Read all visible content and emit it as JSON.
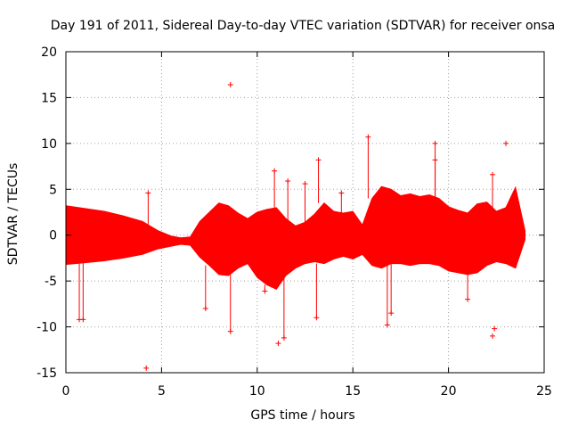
{
  "chart_data": {
    "type": "scatter",
    "title": "Day 191 of 2011, Sidereal Day-to-day VTEC variation (SDTVAR) for receiver onsa",
    "xlabel": "GPS time / hours",
    "ylabel": "SDTVAR / TECUs",
    "xlim": [
      0,
      25
    ],
    "ylim": [
      -15,
      20
    ],
    "xticks": [
      0,
      5,
      10,
      15,
      20,
      25
    ],
    "yticks": [
      -15,
      -10,
      -5,
      0,
      5,
      10,
      15,
      20
    ],
    "grid": true,
    "marker": "+",
    "color": "#ff0000",
    "series": [
      {
        "name": "SDTVAR",
        "band_x": [
          0,
          1,
          2,
          3,
          4,
          4.8,
          5.5,
          6,
          6.5,
          7,
          7.5,
          8,
          8.5,
          9,
          9.5,
          10,
          10.5,
          11,
          11.5,
          12,
          12.5,
          13,
          13.5,
          14,
          14.5,
          15,
          15.5,
          16,
          16.5,
          17,
          17.5,
          18,
          18.5,
          19,
          19.5,
          20,
          20.5,
          21,
          21.5,
          22,
          22.5,
          23,
          23.5,
          24
        ],
        "band_upper": [
          3.2,
          2.9,
          2.6,
          2.1,
          1.5,
          0.5,
          -0.1,
          -0.3,
          -0.2,
          1.5,
          2.5,
          3.5,
          3.2,
          2.4,
          1.8,
          2.5,
          2.8,
          3.0,
          1.8,
          1.0,
          1.4,
          2.3,
          3.5,
          2.6,
          2.4,
          2.6,
          1.1,
          4.0,
          5.3,
          5.0,
          4.3,
          4.5,
          4.2,
          4.4,
          4.0,
          3.1,
          2.7,
          2.4,
          3.4,
          3.6,
          2.6,
          3.0,
          5.2,
          0.5
        ],
        "band_lower": [
          -3.2,
          -3.0,
          -2.8,
          -2.5,
          -2.1,
          -1.5,
          -1.2,
          -1.0,
          -1.1,
          -2.4,
          -3.3,
          -4.3,
          -4.4,
          -3.6,
          -3.1,
          -4.6,
          -5.4,
          -5.9,
          -4.4,
          -3.6,
          -3.1,
          -2.9,
          -3.1,
          -2.6,
          -2.3,
          -2.6,
          -2.1,
          -3.3,
          -3.6,
          -3.1,
          -3.1,
          -3.3,
          -3.1,
          -3.1,
          -3.3,
          -3.9,
          -4.1,
          -4.3,
          -4.1,
          -3.3,
          -2.9,
          -3.1,
          -3.6,
          -0.5
        ],
        "outlier_points": [
          [
            0.7,
            -9.2
          ],
          [
            0.9,
            -9.2
          ],
          [
            4.2,
            -14.5
          ],
          [
            4.3,
            4.6
          ],
          [
            8.6,
            16.4
          ],
          [
            15.8,
            10.7
          ],
          [
            19.3,
            10.0
          ],
          [
            23.0,
            10.0
          ],
          [
            8.6,
            -10.5
          ],
          [
            11.1,
            -11.8
          ],
          [
            11.4,
            -11.2
          ],
          [
            13.2,
            8.2
          ],
          [
            10.9,
            7.0
          ],
          [
            11.6,
            5.9
          ],
          [
            19.3,
            8.2
          ],
          [
            22.3,
            6.6
          ],
          [
            22.3,
            -11.0
          ],
          [
            22.4,
            -10.2
          ],
          [
            21.0,
            -7.0
          ],
          [
            13.1,
            -9.0
          ],
          [
            16.8,
            -9.8
          ],
          [
            17.0,
            -8.5
          ],
          [
            12.5,
            5.6
          ],
          [
            14.4,
            4.6
          ],
          [
            7.3,
            -8.0
          ],
          [
            10.4,
            -6.1
          ]
        ]
      }
    ]
  }
}
